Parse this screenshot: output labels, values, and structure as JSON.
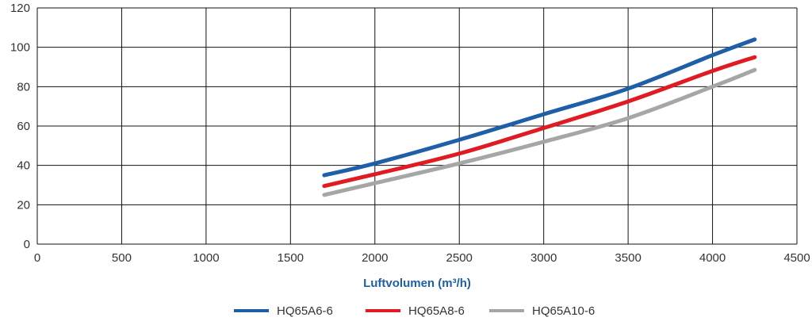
{
  "chart_data": {
    "type": "line",
    "xlabel": "Luftvolumen (m³/h)",
    "ylabel": "",
    "xlim": [
      0,
      4500
    ],
    "ylim": [
      0,
      120
    ],
    "x_ticks": [
      "0",
      "500",
      "1000",
      "1500",
      "2000",
      "2500",
      "3000",
      "3500",
      "4000",
      "4500"
    ],
    "y_ticks": [
      "0",
      "20",
      "40",
      "60",
      "80",
      "100",
      "120"
    ],
    "grid": true,
    "legend_position": "bottom",
    "series": [
      {
        "name": "HQ65A6-6",
        "color": "#1f5fa8",
        "x": [
          1700,
          2000,
          2500,
          3000,
          3500,
          4000,
          4250
        ],
        "y": [
          35,
          41,
          53,
          66,
          79,
          96,
          104
        ]
      },
      {
        "name": "HQ65A8-6",
        "color": "#e01b24",
        "x": [
          1700,
          2000,
          2500,
          3000,
          3500,
          4000,
          4250
        ],
        "y": [
          29.5,
          35.5,
          46,
          59,
          72.5,
          88,
          95
        ]
      },
      {
        "name": "HQ65A10-6",
        "color": "#a6a6a6",
        "x": [
          1700,
          2000,
          2500,
          3000,
          3500,
          4000,
          4250
        ],
        "y": [
          25,
          31,
          41,
          52,
          64,
          80,
          88.5
        ]
      }
    ]
  }
}
